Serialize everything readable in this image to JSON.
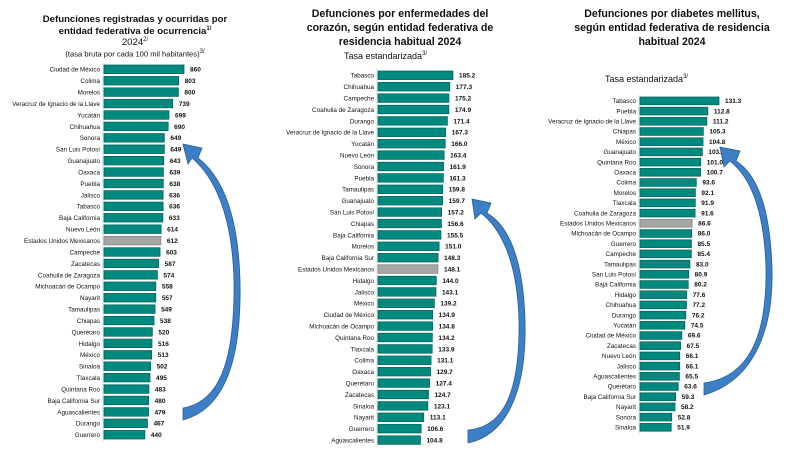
{
  "colors": {
    "bar": "#00897f",
    "bar_edge": "#005f58",
    "national_bar": "#a6a6a6",
    "national_edge": "#7f7f7f",
    "arrow": "#3d7fc7",
    "arrow_edge": "#2a5d95"
  },
  "panels": [
    {
      "title_lines": [
        "Defunciones registradas y ocurridas por",
        "entidad federativa de ocurrencia"
      ],
      "title_sup": "1/",
      "year": "2024",
      "year_sup": "2/",
      "subtitle": "(tasa bruta por cada 100 mil habitantes)",
      "subtitle_sup": "3/"
    },
    {
      "title_lines": [
        "Defunciones por enfermedades del",
        "corazón, según entidad federativa de",
        "residencia habitual 2024"
      ],
      "subtitle": "Tasa estandarizada",
      "subtitle_sup": "3/"
    },
    {
      "title_lines": [
        "Defunciones por diabetes mellitus,",
        "según entidad federativa de residencia",
        "habitual 2024"
      ],
      "subtitle": "Tasa estandarizada",
      "subtitle_sup": "3/"
    }
  ],
  "chart_data": [
    {
      "type": "bar",
      "orientation": "horizontal",
      "title": "Defunciones registradas y ocurridas por entidad federativa de ocurrencia 2024 (tasa bruta por cada 100 mil habitantes)",
      "xlabel": "",
      "ylabel": "",
      "xlim": [
        0,
        860
      ],
      "grid": false,
      "highlight": "Estados Unidos Mexicanos",
      "categories": [
        "Ciudad de México",
        "Colima",
        "Morelos",
        "Veracruz de Ignacio de la Llave",
        "Yucatán",
        "Chihuahua",
        "Sonora",
        "San Luis Potosí",
        "Guanajuato",
        "Oaxaca",
        "Puebla",
        "Jalisco",
        "Tabasco",
        "Baja California",
        "Nuevo León",
        "Estados Unidos Mexicanos",
        "Campeche",
        "Zacatecas",
        "Coahuila de Zaragoza",
        "Michoacán de Ocampo",
        "Nayarit",
        "Tamaulipas",
        "Chiapas",
        "Querétaro",
        "Hidalgo",
        "México",
        "Sinaloa",
        "Tlaxcala",
        "Quintana Roo",
        "Baja California Sur",
        "Aguascalientes",
        "Durango",
        "Guerrero"
      ],
      "values": [
        860,
        803,
        800,
        739,
        699,
        690,
        649,
        649,
        643,
        639,
        638,
        636,
        636,
        633,
        614,
        612,
        603,
        587,
        574,
        558,
        557,
        549,
        538,
        520,
        516,
        513,
        502,
        495,
        483,
        480,
        479,
        467,
        440
      ],
      "labels": [
        "860",
        "803",
        "800",
        "739",
        "699",
        "690",
        "649",
        "649",
        "643",
        "639",
        "638",
        "636",
        "636",
        "633",
        "614",
        "612",
        "603",
        "587",
        "574",
        "558",
        "557",
        "549",
        "538",
        "520",
        "516",
        "513",
        "502",
        "495",
        "483",
        "480",
        "479",
        "467",
        "440"
      ]
    },
    {
      "type": "bar",
      "orientation": "horizontal",
      "title": "Defunciones por enfermedades del corazón, según entidad federativa de residencia habitual 2024 (Tasa estandarizada)",
      "xlabel": "",
      "ylabel": "",
      "xlim": [
        0,
        185.2
      ],
      "grid": false,
      "highlight": "Estados Unidos Mexicanos",
      "categories": [
        "Tabasco",
        "Chihuahua",
        "Campeche",
        "Coahuila de Zaragoza",
        "Durango",
        "Veracruz de Ignacio de la Llave",
        "Yucatán",
        "Nuevo León",
        "Sonora",
        "Puebla",
        "Tamaulipas",
        "Guanajuato",
        "San Luis Potosí",
        "Chiapas",
        "Baja California",
        "Morelos",
        "Baja California Sur",
        "Estados Unidos Mexicanos",
        "Hidalgo",
        "Jalisco",
        "México",
        "Ciudad de México",
        "Michoacán de Ocampo",
        "Quintana Roo",
        "Tlaxcala",
        "Colima",
        "Oaxaca",
        "Querétaro",
        "Zacatecas",
        "Sinaloa",
        "Nayarit",
        "Guerrero",
        "Aguascalientes"
      ],
      "values": [
        185.2,
        177.3,
        175.2,
        174.9,
        171.4,
        167.3,
        166.0,
        163.4,
        161.9,
        161.3,
        159.8,
        159.7,
        157.2,
        156.6,
        155.5,
        151.0,
        148.3,
        148.1,
        144.0,
        143.1,
        139.2,
        134.9,
        134.8,
        134.2,
        133.9,
        131.1,
        129.7,
        127.4,
        124.7,
        123.1,
        113.1,
        106.6,
        104.8
      ],
      "labels": [
        "185.2",
        "177.3",
        "175.2",
        "174.9",
        "171.4",
        "167.3",
        "166.0",
        "163.4",
        "161.9",
        "161.3",
        "159.8",
        "159.7",
        "157.2",
        "156.6",
        "155.5",
        "151.0",
        "148.3",
        "148.1",
        "144.0",
        "143.1",
        "139.2",
        "134.9",
        "134.8",
        "134.2",
        "133.9",
        "131.1",
        "129.7",
        "127.4",
        "124.7",
        "123.1",
        "113.1",
        "106.6",
        "104.8"
      ]
    },
    {
      "type": "bar",
      "orientation": "horizontal",
      "title": "Defunciones por diabetes mellitus, según entidad federativa de residencia habitual 2024 (Tasa estandarizada)",
      "xlabel": "",
      "ylabel": "",
      "xlim": [
        0,
        131.3
      ],
      "grid": false,
      "highlight": "Estados Unidos Mexicanos",
      "categories": [
        "Tabasco",
        "Puebla",
        "Veracruz de Ignacio de la Llave",
        "Chiapas",
        "México",
        "Guanajuato",
        "Quintana Roo",
        "Oaxaca",
        "Colima",
        "Morelos",
        "Tlaxcala",
        "Coahuila de Zaragoza",
        "Estados Unidos Mexicanos",
        "Michoacán de Ocampo",
        "Guerrero",
        "Campeche",
        "Tamaulipas",
        "San Luis Potosí",
        "Baja California",
        "Hidalgo",
        "Chihuahua",
        "Durango",
        "Yucatán",
        "Ciudad de México",
        "Zacatecas",
        "Nuevo León",
        "Jalisco",
        "Aguascalientes",
        "Querétaro",
        "Baja California Sur",
        "Nayarit",
        "Sonora",
        "Sinaloa"
      ],
      "values": [
        131.3,
        112.8,
        111.2,
        105.3,
        104.8,
        103.6,
        101.0,
        100.7,
        93.6,
        92.1,
        91.9,
        91.6,
        86.6,
        86.0,
        85.5,
        85.4,
        83.0,
        80.9,
        80.2,
        77.6,
        77.2,
        76.2,
        74.5,
        69.6,
        67.5,
        66.1,
        66.1,
        65.5,
        63.6,
        59.3,
        58.2,
        52.8,
        51.9
      ],
      "labels": [
        "131.3",
        "112.8",
        "111.2",
        "105.3",
        "104.8",
        "103.6",
        "101.0",
        "100.7",
        "93.6",
        "92.1",
        "91.9",
        "91.6",
        "86.6",
        "86.0",
        "85.5",
        "85.4",
        "83.0",
        "80.9",
        "80.2",
        "77.6",
        "77.2",
        "76.2",
        "74.5",
        "69.6",
        "67.5",
        "66.1",
        "66.1",
        "65.5",
        "63.6",
        "59.3",
        "58.2",
        "52.8",
        "51.9"
      ]
    }
  ],
  "annotations": [
    {
      "type": "curved-arrow",
      "panel": 0,
      "direction": "up"
    },
    {
      "type": "curved-arrow",
      "panel": 1,
      "direction": "up"
    },
    {
      "type": "curved-arrow",
      "panel": 2,
      "direction": "up"
    }
  ]
}
